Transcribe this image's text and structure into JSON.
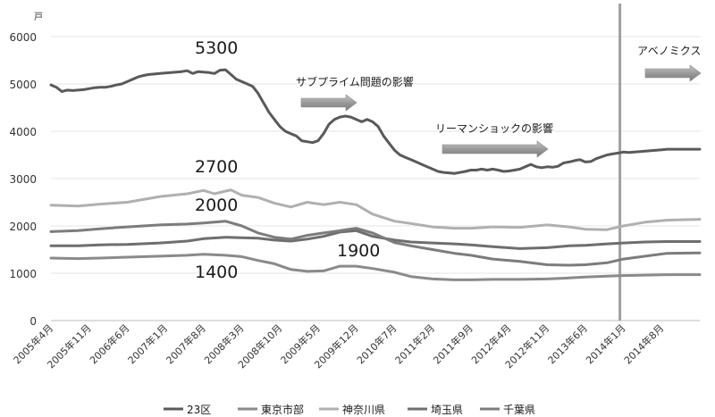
{
  "chart_data": {
    "type": "line",
    "unit_label": "戸",
    "ylim": [
      0,
      6000
    ],
    "yticks": [
      0,
      1000,
      2000,
      3000,
      4000,
      5000,
      6000
    ],
    "x_tick_labels": [
      "2005年4月",
      "2005年11月",
      "2006年6月",
      "2007年1月",
      "2007年8月",
      "2008年3月",
      "2008年10月",
      "2009年5月",
      "2009年12月",
      "2010年7月",
      "2011年2月",
      "2011年9月",
      "2012年4月",
      "2012年11月",
      "2013年6月",
      "2014年1月",
      "2014年8月"
    ],
    "x_start": "2005-04",
    "x_end": "2015-03",
    "grid": "horizontal",
    "legend_position": "bottom",
    "colors": {
      "s23": "#5a5a5a",
      "tokyo": "#8a8a8a",
      "kanagawa": "#b0b0b0",
      "saitama": "#6e6e6e",
      "chiba": "#7c7c7c",
      "divider": "#a0a0a0",
      "arrow": "#888888"
    },
    "series": [
      {
        "name": "23区",
        "key": "s23",
        "points": [
          [
            "2005-04",
            4980
          ],
          [
            "2005-05",
            4930
          ],
          [
            "2005-06",
            4840
          ],
          [
            "2005-07",
            4870
          ],
          [
            "2005-08",
            4860
          ],
          [
            "2005-09",
            4870
          ],
          [
            "2005-10",
            4880
          ],
          [
            "2005-11",
            4900
          ],
          [
            "2005-12",
            4920
          ],
          [
            "2006-01",
            4930
          ],
          [
            "2006-02",
            4930
          ],
          [
            "2006-03",
            4950
          ],
          [
            "2006-04",
            4980
          ],
          [
            "2006-05",
            5000
          ],
          [
            "2006-06",
            5050
          ],
          [
            "2006-07",
            5100
          ],
          [
            "2006-08",
            5150
          ],
          [
            "2006-09",
            5180
          ],
          [
            "2006-10",
            5200
          ],
          [
            "2006-11",
            5210
          ],
          [
            "2006-12",
            5220
          ],
          [
            "2007-01",
            5230
          ],
          [
            "2007-02",
            5240
          ],
          [
            "2007-03",
            5250
          ],
          [
            "2007-04",
            5260
          ],
          [
            "2007-05",
            5280
          ],
          [
            "2007-06",
            5220
          ],
          [
            "2007-07",
            5260
          ],
          [
            "2007-08",
            5250
          ],
          [
            "2007-09",
            5240
          ],
          [
            "2007-10",
            5220
          ],
          [
            "2007-11",
            5290
          ],
          [
            "2007-12",
            5300
          ],
          [
            "2008-01",
            5200
          ],
          [
            "2008-02",
            5100
          ],
          [
            "2008-03",
            5050
          ],
          [
            "2008-04",
            5000
          ],
          [
            "2008-05",
            4950
          ],
          [
            "2008-06",
            4800
          ],
          [
            "2008-07",
            4600
          ],
          [
            "2008-08",
            4400
          ],
          [
            "2008-09",
            4250
          ],
          [
            "2008-10",
            4100
          ],
          [
            "2008-11",
            4000
          ],
          [
            "2008-12",
            3950
          ],
          [
            "2009-01",
            3900
          ],
          [
            "2009-02",
            3800
          ],
          [
            "2009-03",
            3780
          ],
          [
            "2009-04",
            3760
          ],
          [
            "2009-05",
            3800
          ],
          [
            "2009-06",
            3950
          ],
          [
            "2009-07",
            4150
          ],
          [
            "2009-08",
            4250
          ],
          [
            "2009-09",
            4300
          ],
          [
            "2009-10",
            4320
          ],
          [
            "2009-11",
            4300
          ],
          [
            "2009-12",
            4250
          ],
          [
            "2010-01",
            4200
          ],
          [
            "2010-02",
            4250
          ],
          [
            "2010-03",
            4200
          ],
          [
            "2010-04",
            4100
          ],
          [
            "2010-05",
            3900
          ],
          [
            "2010-06",
            3750
          ],
          [
            "2010-07",
            3600
          ],
          [
            "2010-08",
            3500
          ],
          [
            "2010-09",
            3450
          ],
          [
            "2010-10",
            3400
          ],
          [
            "2010-11",
            3350
          ],
          [
            "2010-12",
            3300
          ],
          [
            "2011-01",
            3250
          ],
          [
            "2011-02",
            3200
          ],
          [
            "2011-03",
            3150
          ],
          [
            "2011-04",
            3130
          ],
          [
            "2011-05",
            3120
          ],
          [
            "2011-06",
            3110
          ],
          [
            "2011-07",
            3130
          ],
          [
            "2011-08",
            3150
          ],
          [
            "2011-09",
            3180
          ],
          [
            "2011-10",
            3180
          ],
          [
            "2011-11",
            3200
          ],
          [
            "2011-12",
            3180
          ],
          [
            "2012-01",
            3200
          ],
          [
            "2012-02",
            3180
          ],
          [
            "2012-03",
            3150
          ],
          [
            "2012-04",
            3160
          ],
          [
            "2012-05",
            3180
          ],
          [
            "2012-06",
            3200
          ],
          [
            "2012-07",
            3250
          ],
          [
            "2012-08",
            3300
          ],
          [
            "2012-09",
            3250
          ],
          [
            "2012-10",
            3230
          ],
          [
            "2012-11",
            3250
          ],
          [
            "2012-12",
            3240
          ],
          [
            "2013-01",
            3260
          ],
          [
            "2013-02",
            3330
          ],
          [
            "2013-03",
            3350
          ],
          [
            "2013-04",
            3380
          ],
          [
            "2013-05",
            3400
          ],
          [
            "2013-06",
            3350
          ],
          [
            "2013-07",
            3360
          ],
          [
            "2013-08",
            3420
          ],
          [
            "2013-09",
            3460
          ],
          [
            "2013-10",
            3500
          ],
          [
            "2013-11",
            3520
          ],
          [
            "2013-12",
            3540
          ],
          [
            "2014-01",
            3560
          ],
          [
            "2014-02",
            3550
          ],
          [
            "2014-03",
            3560
          ],
          [
            "2014-04",
            3570
          ],
          [
            "2014-05",
            3580
          ],
          [
            "2014-06",
            3590
          ],
          [
            "2014-07",
            3600
          ],
          [
            "2014-08",
            3610
          ],
          [
            "2014-09",
            3620
          ],
          [
            "2014-10",
            3620
          ],
          [
            "2014-11",
            3620
          ],
          [
            "2014-12",
            3620
          ],
          [
            "2015-01",
            3620
          ],
          [
            "2015-02",
            3620
          ],
          [
            "2015-03",
            3620
          ]
        ]
      },
      {
        "name": "東京市部",
        "key": "tokyo",
        "points": [
          [
            "2005-04",
            1320
          ],
          [
            "2005-09",
            1310
          ],
          [
            "2006-01",
            1320
          ],
          [
            "2006-06",
            1340
          ],
          [
            "2006-12",
            1360
          ],
          [
            "2007-05",
            1380
          ],
          [
            "2007-08",
            1400
          ],
          [
            "2007-12",
            1380
          ],
          [
            "2008-03",
            1350
          ],
          [
            "2008-06",
            1270
          ],
          [
            "2008-09",
            1200
          ],
          [
            "2008-12",
            1080
          ],
          [
            "2009-03",
            1040
          ],
          [
            "2009-06",
            1050
          ],
          [
            "2009-09",
            1150
          ],
          [
            "2009-12",
            1150
          ],
          [
            "2010-03",
            1100
          ],
          [
            "2010-07",
            1020
          ],
          [
            "2010-10",
            930
          ],
          [
            "2011-02",
            880
          ],
          [
            "2011-06",
            860
          ],
          [
            "2011-09",
            860
          ],
          [
            "2012-01",
            870
          ],
          [
            "2012-06",
            870
          ],
          [
            "2012-11",
            880
          ],
          [
            "2013-03",
            900
          ],
          [
            "2013-06",
            920
          ],
          [
            "2013-10",
            940
          ],
          [
            "2014-01",
            950
          ],
          [
            "2014-05",
            960
          ],
          [
            "2014-09",
            970
          ],
          [
            "2015-03",
            970
          ]
        ]
      },
      {
        "name": "神奈川県",
        "key": "kanagawa",
        "points": [
          [
            "2005-04",
            2440
          ],
          [
            "2005-09",
            2420
          ],
          [
            "2006-01",
            2460
          ],
          [
            "2006-06",
            2500
          ],
          [
            "2006-12",
            2620
          ],
          [
            "2007-05",
            2680
          ],
          [
            "2007-08",
            2750
          ],
          [
            "2007-10",
            2680
          ],
          [
            "2008-01",
            2760
          ],
          [
            "2008-03",
            2650
          ],
          [
            "2008-06",
            2600
          ],
          [
            "2008-09",
            2480
          ],
          [
            "2008-12",
            2400
          ],
          [
            "2009-03",
            2500
          ],
          [
            "2009-06",
            2450
          ],
          [
            "2009-09",
            2500
          ],
          [
            "2009-12",
            2450
          ],
          [
            "2010-03",
            2250
          ],
          [
            "2010-07",
            2100
          ],
          [
            "2010-10",
            2050
          ],
          [
            "2011-02",
            1980
          ],
          [
            "2011-06",
            1950
          ],
          [
            "2011-09",
            1950
          ],
          [
            "2012-01",
            1980
          ],
          [
            "2012-06",
            1970
          ],
          [
            "2012-11",
            2020
          ],
          [
            "2013-03",
            1980
          ],
          [
            "2013-06",
            1930
          ],
          [
            "2013-10",
            1920
          ],
          [
            "2014-01",
            2000
          ],
          [
            "2014-05",
            2080
          ],
          [
            "2014-09",
            2120
          ],
          [
            "2015-03",
            2140
          ]
        ]
      },
      {
        "name": "埼玉県",
        "key": "saitama",
        "points": [
          [
            "2005-04",
            1580
          ],
          [
            "2005-09",
            1580
          ],
          [
            "2006-01",
            1600
          ],
          [
            "2006-06",
            1610
          ],
          [
            "2006-12",
            1640
          ],
          [
            "2007-05",
            1680
          ],
          [
            "2007-08",
            1730
          ],
          [
            "2007-12",
            1760
          ],
          [
            "2008-03",
            1750
          ],
          [
            "2008-06",
            1740
          ],
          [
            "2008-09",
            1700
          ],
          [
            "2008-12",
            1680
          ],
          [
            "2009-03",
            1720
          ],
          [
            "2009-06",
            1780
          ],
          [
            "2009-09",
            1870
          ],
          [
            "2009-12",
            1900
          ],
          [
            "2010-03",
            1780
          ],
          [
            "2010-07",
            1700
          ],
          [
            "2010-10",
            1660
          ],
          [
            "2011-02",
            1640
          ],
          [
            "2011-06",
            1620
          ],
          [
            "2011-09",
            1600
          ],
          [
            "2012-01",
            1560
          ],
          [
            "2012-06",
            1520
          ],
          [
            "2012-11",
            1540
          ],
          [
            "2013-03",
            1580
          ],
          [
            "2013-06",
            1590
          ],
          [
            "2013-10",
            1620
          ],
          [
            "2014-01",
            1640
          ],
          [
            "2014-05",
            1660
          ],
          [
            "2014-09",
            1670
          ],
          [
            "2015-03",
            1670
          ]
        ]
      },
      {
        "name": "千葉県",
        "key": "chiba",
        "points": [
          [
            "2005-04",
            1880
          ],
          [
            "2005-09",
            1900
          ],
          [
            "2006-01",
            1940
          ],
          [
            "2006-06",
            1980
          ],
          [
            "2006-12",
            2020
          ],
          [
            "2007-05",
            2040
          ],
          [
            "2007-08",
            2060
          ],
          [
            "2007-12",
            2100
          ],
          [
            "2008-03",
            2000
          ],
          [
            "2008-06",
            1850
          ],
          [
            "2008-09",
            1760
          ],
          [
            "2008-12",
            1720
          ],
          [
            "2009-03",
            1800
          ],
          [
            "2009-06",
            1850
          ],
          [
            "2009-09",
            1900
          ],
          [
            "2009-12",
            1950
          ],
          [
            "2010-03",
            1850
          ],
          [
            "2010-07",
            1650
          ],
          [
            "2010-10",
            1580
          ],
          [
            "2011-02",
            1500
          ],
          [
            "2011-06",
            1420
          ],
          [
            "2011-09",
            1380
          ],
          [
            "2012-01",
            1300
          ],
          [
            "2012-06",
            1250
          ],
          [
            "2012-11",
            1180
          ],
          [
            "2013-03",
            1170
          ],
          [
            "2013-06",
            1180
          ],
          [
            "2013-10",
            1220
          ],
          [
            "2014-01",
            1300
          ],
          [
            "2014-05",
            1360
          ],
          [
            "2014-09",
            1420
          ],
          [
            "2015-03",
            1430
          ]
        ]
      }
    ],
    "value_labels": [
      {
        "text": "5300",
        "key": "label_5300"
      },
      {
        "text": "2700",
        "key": "label_2700"
      },
      {
        "text": "2000",
        "key": "label_2000"
      },
      {
        "text": "1900",
        "key": "label_1900"
      },
      {
        "text": "1400",
        "key": "label_1400"
      }
    ],
    "annotations": [
      {
        "text": "サブプライム問題の影響",
        "key": "subprime"
      },
      {
        "text": "リーマンショックの影響",
        "key": "lehman"
      },
      {
        "text": "アベノミクス",
        "key": "abenomics"
      }
    ],
    "divider_at": "2014-01"
  }
}
